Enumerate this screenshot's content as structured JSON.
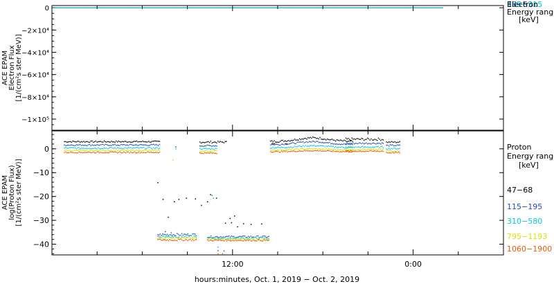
{
  "chart_data": [
    {
      "type": "line",
      "panel": "electron-flux",
      "ylabel_lines": [
        "ACE EPAM",
        "Electron Flux",
        "[1/(cm²s ster MeV)]"
      ],
      "yticks": [
        {
          "value": 0,
          "label": "0"
        },
        {
          "value": -20000,
          "label": "−2×10⁴"
        },
        {
          "value": -40000,
          "label": "−4×10⁴"
        },
        {
          "value": -60000,
          "label": "−6×10⁴"
        },
        {
          "value": -80000,
          "label": "−8×10⁴"
        },
        {
          "value": -100000,
          "label": "−1×10⁵"
        }
      ],
      "ylim": [
        -110000,
        2000
      ],
      "legend": {
        "title_lines": [
          "Electron",
          "Energy range",
          "[keV]"
        ],
        "overlap_labels": [
          "38−53",
          "175−315"
        ]
      },
      "series": [
        {
          "name": "38−53",
          "color": "#1f4fb4",
          "points": [
            [
              0,
              0
            ],
            [
              26,
              0
            ]
          ]
        },
        {
          "name": "175−315",
          "color": "#00bcd4",
          "points": [
            [
              0,
              0
            ],
            [
              26,
              0
            ]
          ]
        }
      ]
    },
    {
      "type": "scatter",
      "panel": "proton-flux",
      "ylabel_lines": [
        "ACE EPAM",
        "log(Proton Flux)",
        "[1/(cm²s ster MeV)]"
      ],
      "yticks": [
        {
          "value": 0,
          "label": "0"
        },
        {
          "value": -10,
          "label": "−10"
        },
        {
          "value": -20,
          "label": "−20"
        },
        {
          "value": -30,
          "label": "−30"
        },
        {
          "value": -40,
          "label": "−40"
        }
      ],
      "ylim": [
        -44.5,
        7.5
      ],
      "xticks": [
        {
          "value": 12,
          "label": "12:00"
        },
        {
          "value": 24,
          "label": "0:00"
        }
      ],
      "xlim": [
        0,
        30
      ],
      "xlabel": "hours:minutes, Oct.  1, 2019 − Oct.  2, 2019",
      "legend": {
        "title_lines": [
          "Proton",
          "Energy range",
          "[keV]"
        ]
      },
      "series": [
        {
          "name": "47−68",
          "color": "#000000",
          "segments": [
            {
              "x0": 0.8,
              "x1": 7.2,
              "base": 3.2,
              "amp": 0.3
            },
            {
              "x0": 9.8,
              "x1": 11.6,
              "base": 3.0,
              "amp": 0.4
            },
            {
              "x0": 14.6,
              "x1": 14.8,
              "base": 2.5,
              "amp": 0.2
            },
            {
              "x0": 15.5,
              "x1": 15.6,
              "base": 2.2,
              "amp": 0.1
            },
            {
              "x0": 14.5,
              "x1": 20.0,
              "base": 3.3,
              "amp": 0.4,
              "bump": 1.5
            },
            {
              "x0": 19.5,
              "x1": 22.0,
              "base": 4.2,
              "amp": 0.5
            },
            {
              "x0": 22.2,
              "x1": 23.1,
              "base": 3.0,
              "amp": 0.3
            }
          ],
          "scattered": [
            [
              7.0,
              -14.0
            ],
            [
              7.35,
              -21.0
            ],
            [
              7.7,
              -28.5
            ],
            [
              8.1,
              -22.0
            ],
            [
              8.4,
              -21.0
            ],
            [
              8.9,
              -20.5
            ],
            [
              9.5,
              -20.8
            ],
            [
              9.9,
              -23.5
            ],
            [
              10.3,
              -22.0
            ],
            [
              10.5,
              -19.0
            ],
            [
              10.9,
              -20.5
            ],
            [
              11.5,
              -31.0
            ],
            [
              11.9,
              -30.8
            ],
            [
              12.3,
              -32.5
            ],
            [
              12.7,
              -31.2
            ],
            [
              13.2,
              -31.5
            ],
            [
              13.9,
              -31.3
            ],
            [
              12.1,
              -28.0
            ],
            [
              11.8,
              -29.0
            ]
          ]
        },
        {
          "name": "115−195",
          "color": "#1f4fb4",
          "segments": [
            {
              "x0": 0.8,
              "x1": 7.2,
              "base": 1.8,
              "amp": 0.3
            },
            {
              "x0": 9.8,
              "x1": 11.0,
              "base": 1.5,
              "amp": 0.3
            },
            {
              "x0": 14.5,
              "x1": 20.0,
              "base": 2.0,
              "amp": 0.3,
              "bump": 1.2
            },
            {
              "x0": 19.5,
              "x1": 22.0,
              "base": 2.5,
              "amp": 0.3
            },
            {
              "x0": 22.2,
              "x1": 23.1,
              "base": 1.6,
              "amp": 0.3
            },
            {
              "x0": 7.0,
              "x1": 9.6,
              "base": -35.8,
              "amp": 0.5
            },
            {
              "x0": 10.3,
              "x1": 14.4,
              "base": -36.7,
              "amp": 0.4
            }
          ],
          "scattered": [
            [
              7.5,
              -34.5
            ],
            [
              7.9,
              -35.0
            ],
            [
              10.6,
              -19.3
            ],
            [
              11.0,
              -42.5
            ],
            [
              11.4,
              -42.6
            ],
            [
              8.2,
              1.0
            ]
          ]
        },
        {
          "name": "310−580",
          "color": "#00c8dc",
          "segments": [
            {
              "x0": 0.8,
              "x1": 7.2,
              "base": 0.5,
              "amp": 0.3
            },
            {
              "x0": 9.8,
              "x1": 11.0,
              "base": 0.2,
              "amp": 0.3
            },
            {
              "x0": 14.5,
              "x1": 20.0,
              "base": 0.7,
              "amp": 0.3,
              "bump": 0.8
            },
            {
              "x0": 19.5,
              "x1": 22.0,
              "base": 0.9,
              "amp": 0.3
            },
            {
              "x0": 22.2,
              "x1": 23.1,
              "base": 0.3,
              "amp": 0.3
            },
            {
              "x0": 7.0,
              "x1": 9.6,
              "base": -36.6,
              "amp": 0.5
            },
            {
              "x0": 10.3,
              "x1": 14.4,
              "base": -37.3,
              "amp": 0.4
            }
          ],
          "scattered": [
            [
              10.7,
              -20.5
            ],
            [
              11.0,
              -41.0
            ],
            [
              8.2,
              0.2
            ],
            [
              7.4,
              -35.8
            ]
          ]
        },
        {
          "name": "795−1193",
          "color": "#dede00",
          "segments": [
            {
              "x0": 0.8,
              "x1": 7.2,
              "base": -0.5,
              "amp": 0.25
            },
            {
              "x0": 9.8,
              "x1": 11.0,
              "base": -0.8,
              "amp": 0.3
            },
            {
              "x0": 14.5,
              "x1": 20.0,
              "base": -0.3,
              "amp": 0.25,
              "bump": 0.5
            },
            {
              "x0": 19.5,
              "x1": 22.0,
              "base": -0.1,
              "amp": 0.25
            },
            {
              "x0": 22.2,
              "x1": 23.1,
              "base": -0.7,
              "amp": 0.25
            },
            {
              "x0": 7.0,
              "x1": 9.6,
              "base": -37.3,
              "amp": 0.4
            },
            {
              "x0": 10.3,
              "x1": 14.4,
              "base": -37.8,
              "amp": 0.3
            }
          ],
          "scattered": [
            [
              8.0,
              -4.5
            ],
            [
              10.5,
              -21.0
            ],
            [
              11.0,
              -43.5
            ]
          ]
        },
        {
          "name": "1060−1900",
          "color": "#e35a00",
          "segments": [
            {
              "x0": 0.8,
              "x1": 7.2,
              "base": -1.3,
              "amp": 0.25
            },
            {
              "x0": 9.8,
              "x1": 11.0,
              "base": -1.6,
              "amp": 0.25
            },
            {
              "x0": 14.5,
              "x1": 20.0,
              "base": -1.0,
              "amp": 0.25,
              "bump": 0.4
            },
            {
              "x0": 19.5,
              "x1": 22.0,
              "base": -0.8,
              "amp": 0.25
            },
            {
              "x0": 22.2,
              "x1": 23.1,
              "base": -1.4,
              "amp": 0.25
            },
            {
              "x0": 7.0,
              "x1": 9.6,
              "base": -38.0,
              "amp": 0.4
            },
            {
              "x0": 10.3,
              "x1": 14.4,
              "base": -38.2,
              "amp": 0.3
            }
          ],
          "scattered": [
            [
              11.0,
              -44.0
            ],
            [
              11.3,
              -43.8
            ]
          ]
        }
      ]
    }
  ]
}
